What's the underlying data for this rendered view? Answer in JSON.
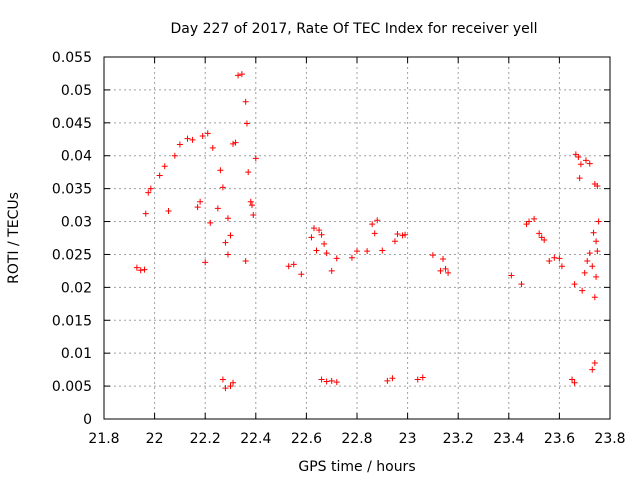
{
  "chart_data": {
    "type": "scatter",
    "title": "Day 227 of 2017, Rate Of TEC Index for receiver yell",
    "xlabel": "GPS time / hours",
    "ylabel": "ROTI / TECUs",
    "xlim": [
      21.8,
      23.8
    ],
    "ylim": [
      0,
      0.055
    ],
    "xticks": [
      21.8,
      22.0,
      22.2,
      22.4,
      22.6,
      22.8,
      23.0,
      23.2,
      23.4,
      23.6,
      23.8
    ],
    "xtick_labels": [
      "21.8",
      "22",
      "22.2",
      "22.4",
      "22.6",
      "22.8",
      "23",
      "23.2",
      "23.4",
      "23.6",
      "23.8"
    ],
    "yticks": [
      0,
      0.005,
      0.01,
      0.015,
      0.02,
      0.025,
      0.03,
      0.035,
      0.04,
      0.045,
      0.05,
      0.055
    ],
    "ytick_labels": [
      "0",
      "0.005",
      "0.01",
      "0.015",
      "0.02",
      "0.025",
      "0.03",
      "0.035",
      "0.04",
      "0.045",
      "0.05",
      "0.055"
    ],
    "grid": true,
    "marker": "+",
    "marker_color": "#ff0000",
    "series": [
      {
        "name": "ROTI",
        "points": [
          [
            22.33,
            0.0522
          ],
          [
            22.345,
            0.0524
          ],
          [
            22.36,
            0.0482
          ],
          [
            22.365,
            0.0449
          ],
          [
            22.32,
            0.042
          ],
          [
            22.31,
            0.0418
          ],
          [
            22.23,
            0.0412
          ],
          [
            22.4,
            0.0396
          ],
          [
            22.37,
            0.0375
          ],
          [
            22.38,
            0.033
          ],
          [
            22.385,
            0.0325
          ],
          [
            22.39,
            0.031
          ],
          [
            22.19,
            0.043
          ],
          [
            22.21,
            0.0434
          ],
          [
            22.13,
            0.0426
          ],
          [
            22.15,
            0.0424
          ],
          [
            22.1,
            0.0417
          ],
          [
            22.08,
            0.04
          ],
          [
            22.04,
            0.0384
          ],
          [
            22.02,
            0.037
          ],
          [
            21.985,
            0.035
          ],
          [
            21.975,
            0.0344
          ],
          [
            21.965,
            0.0312
          ],
          [
            22.055,
            0.0316
          ],
          [
            22.26,
            0.0378
          ],
          [
            22.27,
            0.0352
          ],
          [
            22.18,
            0.033
          ],
          [
            22.17,
            0.0322
          ],
          [
            22.22,
            0.0298
          ],
          [
            22.25,
            0.032
          ],
          [
            22.29,
            0.0305
          ],
          [
            22.3,
            0.0279
          ],
          [
            22.28,
            0.0268
          ],
          [
            22.29,
            0.025
          ],
          [
            22.36,
            0.024
          ],
          [
            22.2,
            0.0238
          ],
          [
            21.93,
            0.023
          ],
          [
            21.945,
            0.0226
          ],
          [
            21.96,
            0.0227
          ],
          [
            22.63,
            0.029
          ],
          [
            22.65,
            0.0287
          ],
          [
            22.66,
            0.028
          ],
          [
            22.62,
            0.0276
          ],
          [
            22.67,
            0.0266
          ],
          [
            22.64,
            0.0256
          ],
          [
            22.68,
            0.0252
          ],
          [
            22.72,
            0.0244
          ],
          [
            22.78,
            0.0245
          ],
          [
            22.8,
            0.0255
          ],
          [
            22.84,
            0.0255
          ],
          [
            22.86,
            0.0296
          ],
          [
            22.88,
            0.0302
          ],
          [
            22.87,
            0.0282
          ],
          [
            22.96,
            0.0281
          ],
          [
            22.98,
            0.0279
          ],
          [
            22.95,
            0.027
          ],
          [
            22.99,
            0.028
          ],
          [
            22.9,
            0.0256
          ],
          [
            23.1,
            0.0249
          ],
          [
            23.14,
            0.0243
          ],
          [
            23.15,
            0.0228
          ],
          [
            23.16,
            0.0222
          ],
          [
            23.13,
            0.0225
          ],
          [
            22.53,
            0.0232
          ],
          [
            22.55,
            0.0235
          ],
          [
            22.58,
            0.022
          ],
          [
            22.7,
            0.0225
          ],
          [
            23.48,
            0.03
          ],
          [
            23.5,
            0.0304
          ],
          [
            23.47,
            0.0296
          ],
          [
            23.52,
            0.0282
          ],
          [
            23.53,
            0.0276
          ],
          [
            23.54,
            0.0272
          ],
          [
            23.56,
            0.024
          ],
          [
            23.58,
            0.0245
          ],
          [
            23.6,
            0.0244
          ],
          [
            23.41,
            0.0218
          ],
          [
            23.45,
            0.0205
          ],
          [
            23.61,
            0.0232
          ],
          [
            23.665,
            0.0402
          ],
          [
            23.675,
            0.0398
          ],
          [
            23.685,
            0.0387
          ],
          [
            23.705,
            0.0393
          ],
          [
            23.72,
            0.0388
          ],
          [
            23.74,
            0.0357
          ],
          [
            23.75,
            0.0354
          ],
          [
            23.68,
            0.0366
          ],
          [
            23.755,
            0.03
          ],
          [
            23.735,
            0.0283
          ],
          [
            23.745,
            0.027
          ],
          [
            23.75,
            0.0255
          ],
          [
            23.72,
            0.0252
          ],
          [
            23.73,
            0.0232
          ],
          [
            23.71,
            0.024
          ],
          [
            23.7,
            0.0222
          ],
          [
            23.69,
            0.0195
          ],
          [
            23.66,
            0.0205
          ],
          [
            23.745,
            0.0216
          ],
          [
            23.74,
            0.0185
          ],
          [
            23.65,
            0.006
          ],
          [
            23.66,
            0.0055
          ],
          [
            23.73,
            0.0075
          ],
          [
            23.74,
            0.0085
          ],
          [
            22.3,
            0.005
          ],
          [
            22.28,
            0.0047
          ],
          [
            22.31,
            0.0055
          ],
          [
            22.27,
            0.006
          ],
          [
            22.68,
            0.0057
          ],
          [
            22.7,
            0.0058
          ],
          [
            22.72,
            0.0056
          ],
          [
            22.66,
            0.006
          ],
          [
            22.92,
            0.0058
          ],
          [
            22.94,
            0.0062
          ],
          [
            23.04,
            0.006
          ],
          [
            23.06,
            0.0063
          ]
        ]
      }
    ]
  }
}
